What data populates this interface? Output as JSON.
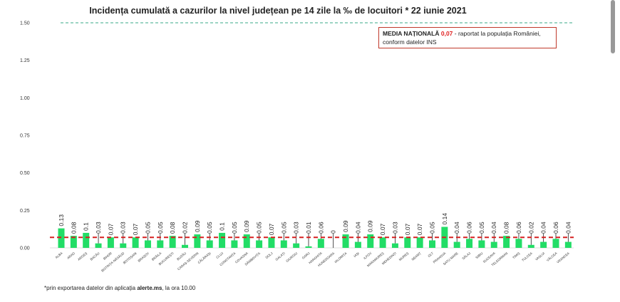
{
  "chart_data": {
    "type": "bar",
    "title": "Incidența cumulată a cazurilor la nivel județean pe 14 zile la ‰ de locuitori *  22 iunie 2021",
    "xlabel": "",
    "ylabel": "",
    "ylim": [
      0,
      1.5
    ],
    "yticks": [
      "0.00",
      "0.25",
      "0.50",
      "0.75",
      "1.00",
      "1.25",
      "1.50"
    ],
    "threshold_line": 1.5,
    "mean_line": 0.07,
    "categories": [
      "ALBA",
      "ARAD",
      "ARGEȘ",
      "BACĂU",
      "BIHOR",
      "BISTRIȚA-NĂSĂUD",
      "BOTOȘANI",
      "BRAȘOV",
      "BRĂILA",
      "BUCUREȘTI",
      "BUZĂU",
      "CARAȘ-SEVERIN",
      "CĂLĂRAȘI",
      "CLUJ",
      "CONSTANȚA",
      "COVASNA",
      "DÂMBOVIȚA",
      "DOLJ",
      "GALAȚI",
      "GIURGIU",
      "GORJ",
      "HARGHITA",
      "HUNEDOARA",
      "IALOMIȚA",
      "IAȘI",
      "ILFOV",
      "MARAMUREȘ",
      "MEHEDINȚI",
      "MUREȘ",
      "NEAMȚ",
      "OLT",
      "PRAHOVA",
      "SATU MARE",
      "SĂLAJ",
      "SIBIU",
      "SUCEAVA",
      "TELEORMAN",
      "TIMIȘ",
      "TULCEA",
      "VASLUI",
      "VÂLCEA",
      "VRANCEA"
    ],
    "values": [
      0.13,
      0.08,
      0.1,
      0.03,
      0.07,
      0.03,
      0.07,
      0.05,
      0.05,
      0.08,
      0.02,
      0.09,
      0.05,
      0.1,
      0.05,
      0.09,
      0.05,
      0.07,
      0.05,
      0.03,
      0.01,
      0.06,
      0,
      0.09,
      0.04,
      0.09,
      0.07,
      0.03,
      0.07,
      0.07,
      0.05,
      0.14,
      0.04,
      0.06,
      0.05,
      0.04,
      0.08,
      0.06,
      0.02,
      0.04,
      0.06,
      0.04
    ],
    "value_labels": [
      "0.13",
      "0.08",
      "0.1",
      "0.03",
      "0.07",
      "0.03",
      "0.07",
      "0.05",
      "0.05",
      "0.08",
      "0.02",
      "0.09",
      "0.05",
      "0.1",
      "0.05",
      "0.09",
      "0.05",
      "0.07",
      "0.05",
      "0.03",
      "0.01",
      "0.06",
      "0",
      "0.09",
      "0.04",
      "0.09",
      "0.07",
      "0.03",
      "0.07",
      "0.07",
      "0.05",
      "0.14",
      "0.04",
      "0.06",
      "0.05",
      "0.04",
      "0.08",
      "0.06",
      "0.02",
      "0.04",
      "0.06",
      "0.04"
    ],
    "colors": {
      "bar": "#22dd66",
      "mean": "#d62020",
      "threshold": "#3aa88a"
    }
  },
  "note": {
    "label": "MEDIA NAȚIONALĂ",
    "value": "0,07",
    "text": "- raportat la populația României, conform datelor INS"
  },
  "footnote": {
    "prefix": "*prin exportarea datelor din aplicația ",
    "app": "alerte.ms",
    "suffix": ", la ora 10.00"
  }
}
